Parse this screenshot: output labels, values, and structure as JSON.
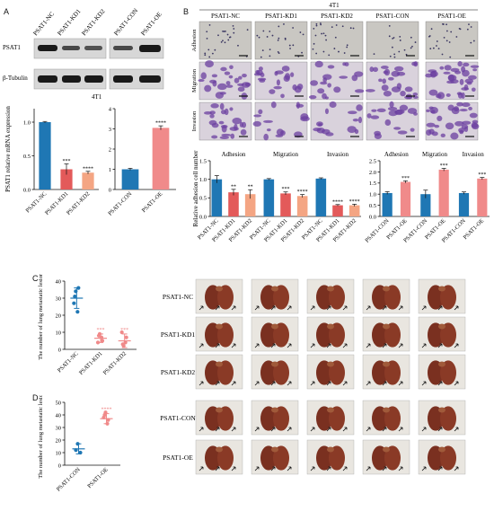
{
  "colors": {
    "blue": "#1f77b4",
    "red": "#e35a5a",
    "salmon": "#f4a583",
    "pink": "#f08a8a",
    "purple": "#6b3fa0",
    "lung": "#7a3020"
  },
  "panel_letters": {
    "a": "A",
    "b": "B",
    "c": "C",
    "d": "D"
  },
  "western": {
    "lanes_left": [
      "PSAT1-NC",
      "PSAT1-KD1",
      "PSAT1-KD2"
    ],
    "lanes_right": [
      "PSAT1-CON",
      "PSAT1-OE"
    ],
    "rows": [
      "PSAT1",
      "β-Tubulin"
    ],
    "cell_line": "4T1"
  },
  "micro": {
    "cell_line": "4T1",
    "columns": [
      "PSAT1-NC",
      "PSAT1-KD1",
      "PSAT1-KD2",
      "PSAT1-CON",
      "PSAT1-OE"
    ],
    "rows": [
      "Adhesion",
      "Migration",
      "Invasion"
    ]
  },
  "tumors": {
    "c_labels": [
      "PSAT1-NC",
      "PSAT1-KD1",
      "PSAT1-KD2"
    ],
    "d_labels": [
      "PSAT1-CON",
      "PSAT1-OE"
    ]
  },
  "chart_data": [
    {
      "id": "mrna_kd",
      "type": "bar",
      "ylabel": "PSAT1 relative mRNA expression",
      "ylim": [
        0,
        1.2
      ],
      "yticks": [
        0,
        0.5,
        1.0
      ],
      "categories": [
        "PSAT1-NC",
        "PSAT1-KD1",
        "PSAT1-KD2"
      ],
      "values": [
        1.0,
        0.3,
        0.25
      ],
      "errors": [
        0.01,
        0.08,
        0.02
      ],
      "sig": [
        "",
        "***",
        "****"
      ],
      "colors": [
        "#1f77b4",
        "#e35a5a",
        "#f4a583"
      ]
    },
    {
      "id": "mrna_oe",
      "type": "bar",
      "ylim": [
        0,
        4
      ],
      "yticks": [
        0,
        1,
        2,
        3,
        4
      ],
      "categories": [
        "PSAT1-CON",
        "PSAT1-OE"
      ],
      "values": [
        1.0,
        3.05
      ],
      "errors": [
        0.05,
        0.1
      ],
      "sig": [
        "",
        "****"
      ],
      "colors": [
        "#1f77b4",
        "#f08a8a"
      ]
    },
    {
      "id": "cell_kd",
      "type": "bar",
      "ylabel": "Relative adhesion cell number",
      "ylim": [
        0,
        1.5
      ],
      "yticks": [
        0.0,
        0.5,
        1.0,
        1.5
      ],
      "groups": [
        "Adhesion",
        "Migration",
        "Invasion"
      ],
      "categories": [
        "PSAT1-NC",
        "PSAT1-KD1",
        "PSAT1-KD2",
        "PSAT1-NC",
        "PSAT1-KD1",
        "PSAT1-KD2",
        "PSAT1-NC",
        "PSAT1-KD1",
        "PSAT1-KD2"
      ],
      "values": [
        1.0,
        0.65,
        0.6,
        1.0,
        0.62,
        0.55,
        1.02,
        0.3,
        0.3
      ],
      "errors": [
        0.1,
        0.08,
        0.12,
        0.02,
        0.04,
        0.04,
        0.02,
        0.02,
        0.03
      ],
      "sig": [
        "",
        "**",
        "**",
        "",
        "***",
        "****",
        "",
        "****",
        "****"
      ],
      "colors": [
        "#1f77b4",
        "#e35a5a",
        "#f4a583",
        "#1f77b4",
        "#e35a5a",
        "#f4a583",
        "#1f77b4",
        "#e35a5a",
        "#f4a583"
      ]
    },
    {
      "id": "cell_oe",
      "type": "bar",
      "ylim": [
        0,
        2.5
      ],
      "yticks": [
        0.0,
        0.5,
        1.0,
        1.5,
        2.0,
        2.5
      ],
      "groups": [
        "Adhesion",
        "Migration",
        "Invasion"
      ],
      "categories": [
        "PSAT1-CON",
        "PSAT1-OE",
        "PSAT1-CON",
        "PSAT1-OE",
        "PSAT1-CON",
        "PSAT1-OE"
      ],
      "values": [
        1.05,
        1.55,
        1.0,
        2.1,
        1.05,
        1.7
      ],
      "errors": [
        0.06,
        0.05,
        0.18,
        0.06,
        0.05,
        0.05
      ],
      "sig": [
        "",
        "***",
        "",
        "***",
        "",
        "***"
      ],
      "colors": [
        "#1f77b4",
        "#f08a8a",
        "#1f77b4",
        "#f08a8a",
        "#1f77b4",
        "#f08a8a"
      ]
    },
    {
      "id": "lung_kd",
      "type": "scatter",
      "ylabel": "The number of lung metastatic lesions",
      "ylim": [
        0,
        40
      ],
      "yticks": [
        0,
        10,
        20,
        30,
        40
      ],
      "categories": [
        "PSAT1-NC",
        "PSAT1-KD1",
        "PSAT1-KD2"
      ],
      "points": [
        [
          34,
          36,
          27,
          22,
          31
        ],
        [
          9,
          5,
          4,
          7,
          8
        ],
        [
          2,
          7,
          10,
          4,
          3
        ]
      ],
      "means": [
        30,
        6.5,
        5
      ],
      "sds": [
        6,
        2.5,
        4
      ],
      "sig": [
        "",
        "***",
        "***"
      ],
      "colors": [
        "#1f77b4",
        "#f08a8a",
        "#f08a8a"
      ]
    },
    {
      "id": "lung_oe",
      "type": "scatter",
      "ylabel": "The number of lung metastatic lesions",
      "ylim": [
        0,
        50
      ],
      "yticks": [
        0,
        10,
        20,
        30,
        40,
        50
      ],
      "categories": [
        "PSAT1-CON",
        "PSAT1-OE"
      ],
      "points": [
        [
          17,
          10,
          12
        ],
        [
          42,
          36,
          38,
          33,
          40
        ]
      ],
      "means": [
        13,
        37
      ],
      "sds": [
        4,
        4
      ],
      "sig": [
        "",
        "****"
      ],
      "colors": [
        "#1f77b4",
        "#f08a8a"
      ]
    }
  ]
}
